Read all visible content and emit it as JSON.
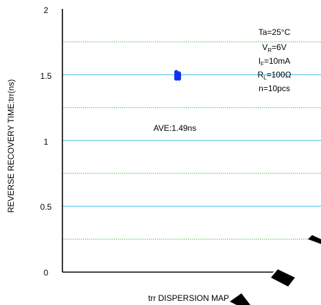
{
  "chart_data": {
    "type": "scatter",
    "title": "",
    "xlabel": "trr DISPERSION MAP",
    "ylabel": "REVERSE RECOVERY TIME:trr(ns)",
    "ylim": [
      0,
      2
    ],
    "y_ticks": [
      "0",
      "0.5",
      "1",
      "1.5",
      "2"
    ],
    "grid": {
      "major": [
        0.5,
        1.0,
        1.5
      ],
      "minor": [
        0.25,
        0.75,
        1.25,
        1.75
      ],
      "major_color": "#33BBDD",
      "minor_color": "#44BB44"
    },
    "series": [
      {
        "color": "#1133EE",
        "values": [
          1.52,
          1.51,
          1.5,
          1.5,
          1.49,
          1.49,
          1.48,
          1.48,
          1.47,
          1.47
        ]
      }
    ],
    "annotations": {
      "average": "AVE:1.49ns",
      "conditions": [
        {
          "main": "Ta=25°C"
        },
        {
          "main": "V",
          "sub": "R",
          "rest": "=6V"
        },
        {
          "main": "I",
          "sub": "F",
          "rest": "=10mA"
        },
        {
          "main": "R",
          "sub": "L",
          "rest": "=100Ω"
        },
        {
          "main": "n=10pcs"
        }
      ]
    }
  }
}
